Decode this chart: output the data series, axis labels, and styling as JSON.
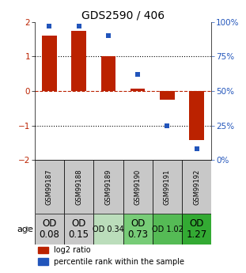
{
  "title": "GDS2590 / 406",
  "samples": [
    "GSM99187",
    "GSM99188",
    "GSM99189",
    "GSM99190",
    "GSM99191",
    "GSM99192"
  ],
  "log2_ratio": [
    1.6,
    1.75,
    1.0,
    0.07,
    -0.25,
    -1.42
  ],
  "percentile_rank": [
    97,
    97,
    90,
    62,
    25,
    8
  ],
  "bar_color": "#bb2200",
  "dot_color": "#2255bb",
  "ylim": [
    -2,
    2
  ],
  "y_right_ticks": [
    0,
    25,
    50,
    75,
    100
  ],
  "y_left_ticks": [
    -2,
    -1,
    0,
    1,
    2
  ],
  "table_row_labels_big": [
    "OD\n0.08",
    "OD\n0.15",
    "",
    "OD\n0.73",
    "",
    "OD\n1.27"
  ],
  "table_row_labels_small": [
    "",
    "",
    "OD 0.34",
    "",
    "OD 1.02",
    ""
  ],
  "table_colors": [
    "#c8c8c8",
    "#c8c8c8",
    "#bbddbb",
    "#77cc77",
    "#55bb55",
    "#33aa33"
  ],
  "age_label": "age",
  "legend_bar_label": "log2 ratio",
  "legend_dot_label": "percentile rank within the sample",
  "background_color": "#ffffff"
}
